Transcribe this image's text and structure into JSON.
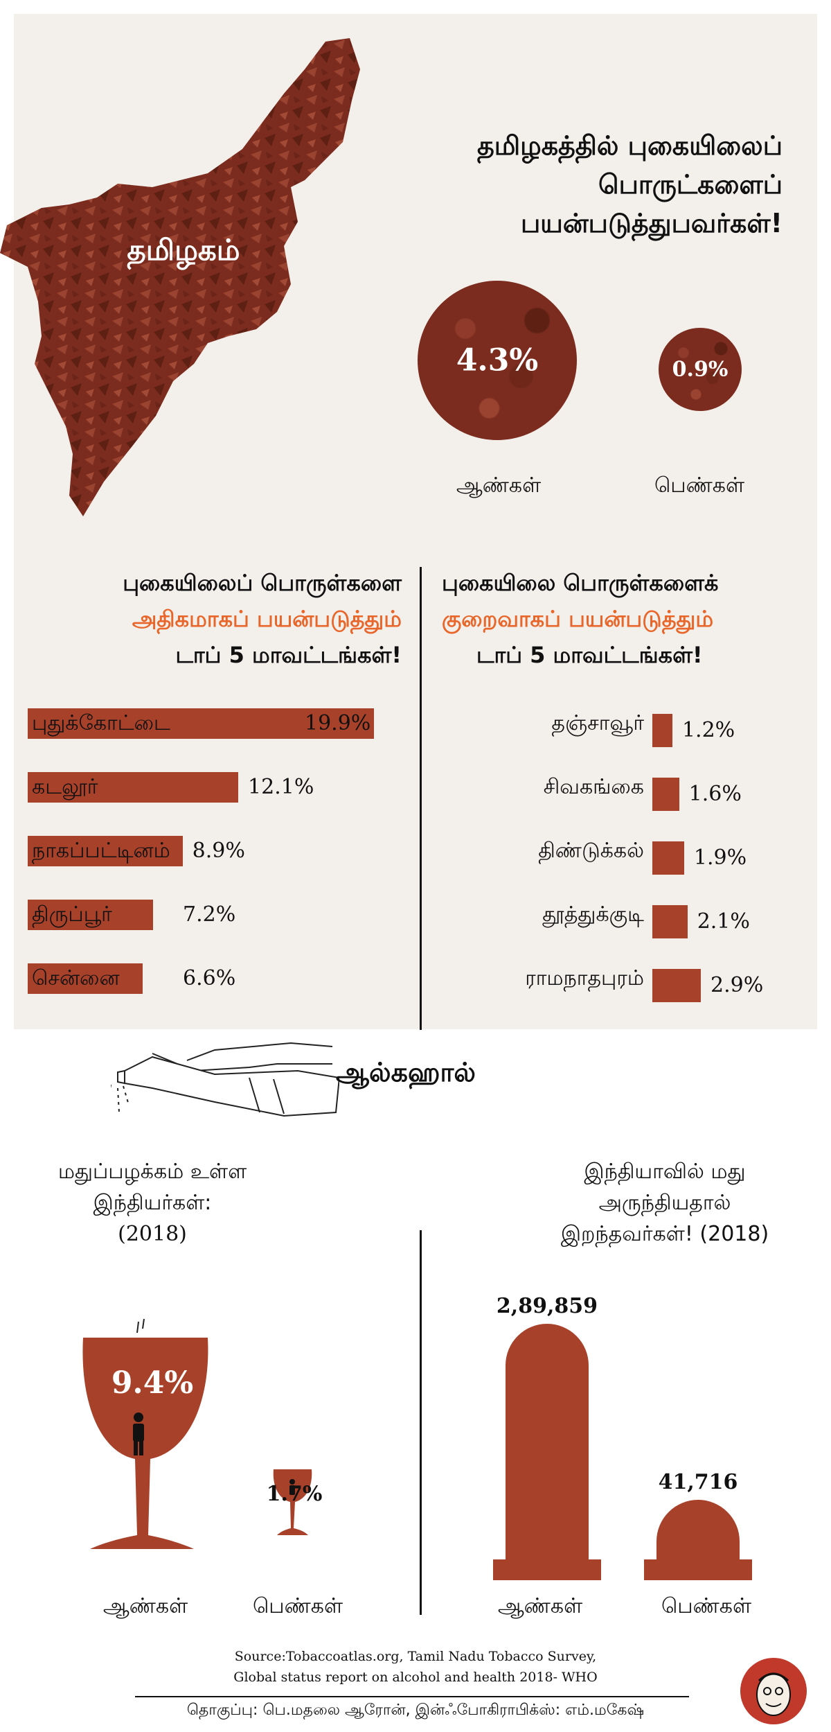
{
  "colors": {
    "bar": "#a8412a",
    "highlight": "#e8662a",
    "panel": "#f3f0ec",
    "tobacco": "#7b2c1e"
  },
  "map_label": "தமிழகம்",
  "tobacco_title": [
    "தமிழகத்தில் புகையிலைப்",
    "பொருட்களைப்",
    "பயன்படுத்துபவர்கள்!"
  ],
  "tobacco_gender": {
    "men_value": "4.3%",
    "women_value": "0.9%",
    "men_label": "ஆண்கள்",
    "women_label": "பெண்கள்"
  },
  "high_title": {
    "line1": "புகையிலைப் பொருள்களை",
    "line2": "அதிகமாகப் பயன்படுத்தும்",
    "line3": "டாப் 5 மாவட்டங்கள்!"
  },
  "low_title": {
    "line1": "புகையிலை பொருள்களைக்",
    "line2": "குறைவாகப் பயன்படுத்தும்",
    "line3": "டாப் 5 மாவட்டங்கள்!"
  },
  "alcohol_title": "ஆல்கஹால்",
  "alcohol_users_title": [
    "மதுப்பழக்கம் உள்ள",
    "இந்தியர்கள்:",
    "(2018)"
  ],
  "alcohol_deaths_title": [
    "இந்தியாவில் மது",
    "அருந்தியதால்",
    "இறந்தவர்கள்! (2018)"
  ],
  "alcohol_labels": {
    "men": "ஆண்கள்",
    "women": "பெண்கள்"
  },
  "alcohol_users": {
    "men": "9.4%",
    "women": "1.7%"
  },
  "alcohol_deaths": {
    "men": "2,89,859",
    "women": "41,716"
  },
  "source": [
    "Source:Tobaccoatlas.org, Tamil Nadu Tobacco Survey,",
    "Global status report on alcohol and health 2018- WHO"
  ],
  "credits": "தொகுப்பு: பெ.மதலை ஆரோன், இன்ஃபோகிராபிக்ஸ்: எம்.மகேஷ்",
  "chart_data": [
    {
      "type": "bar",
      "categories": [
        "புதுக்கோட்டை",
        "கடலூர்",
        "நாகப்பட்டினம்",
        "திருப்பூர்",
        "சென்னை"
      ],
      "values": [
        19.9,
        12.1,
        8.9,
        7.2,
        6.6
      ],
      "labels": [
        "19.9%",
        "12.1%",
        "8.9%",
        "7.2%",
        "6.6%"
      ]
    },
    {
      "type": "bar",
      "categories": [
        "தஞ்சாவூர்",
        "சிவகங்கை",
        "திண்டுக்கல்",
        "தூத்துக்குடி",
        "ராமநாதபுரம்"
      ],
      "values": [
        1.2,
        1.6,
        1.9,
        2.1,
        2.9
      ],
      "labels": [
        "1.2%",
        "1.6%",
        "1.9%",
        "2.1%",
        "2.9%"
      ]
    },
    {
      "type": "bar",
      "categories": [
        "ஆண்கள்",
        "பெண்கள்"
      ],
      "values": [
        289859,
        41716
      ],
      "labels": [
        "2,89,859",
        "41,716"
      ]
    }
  ]
}
